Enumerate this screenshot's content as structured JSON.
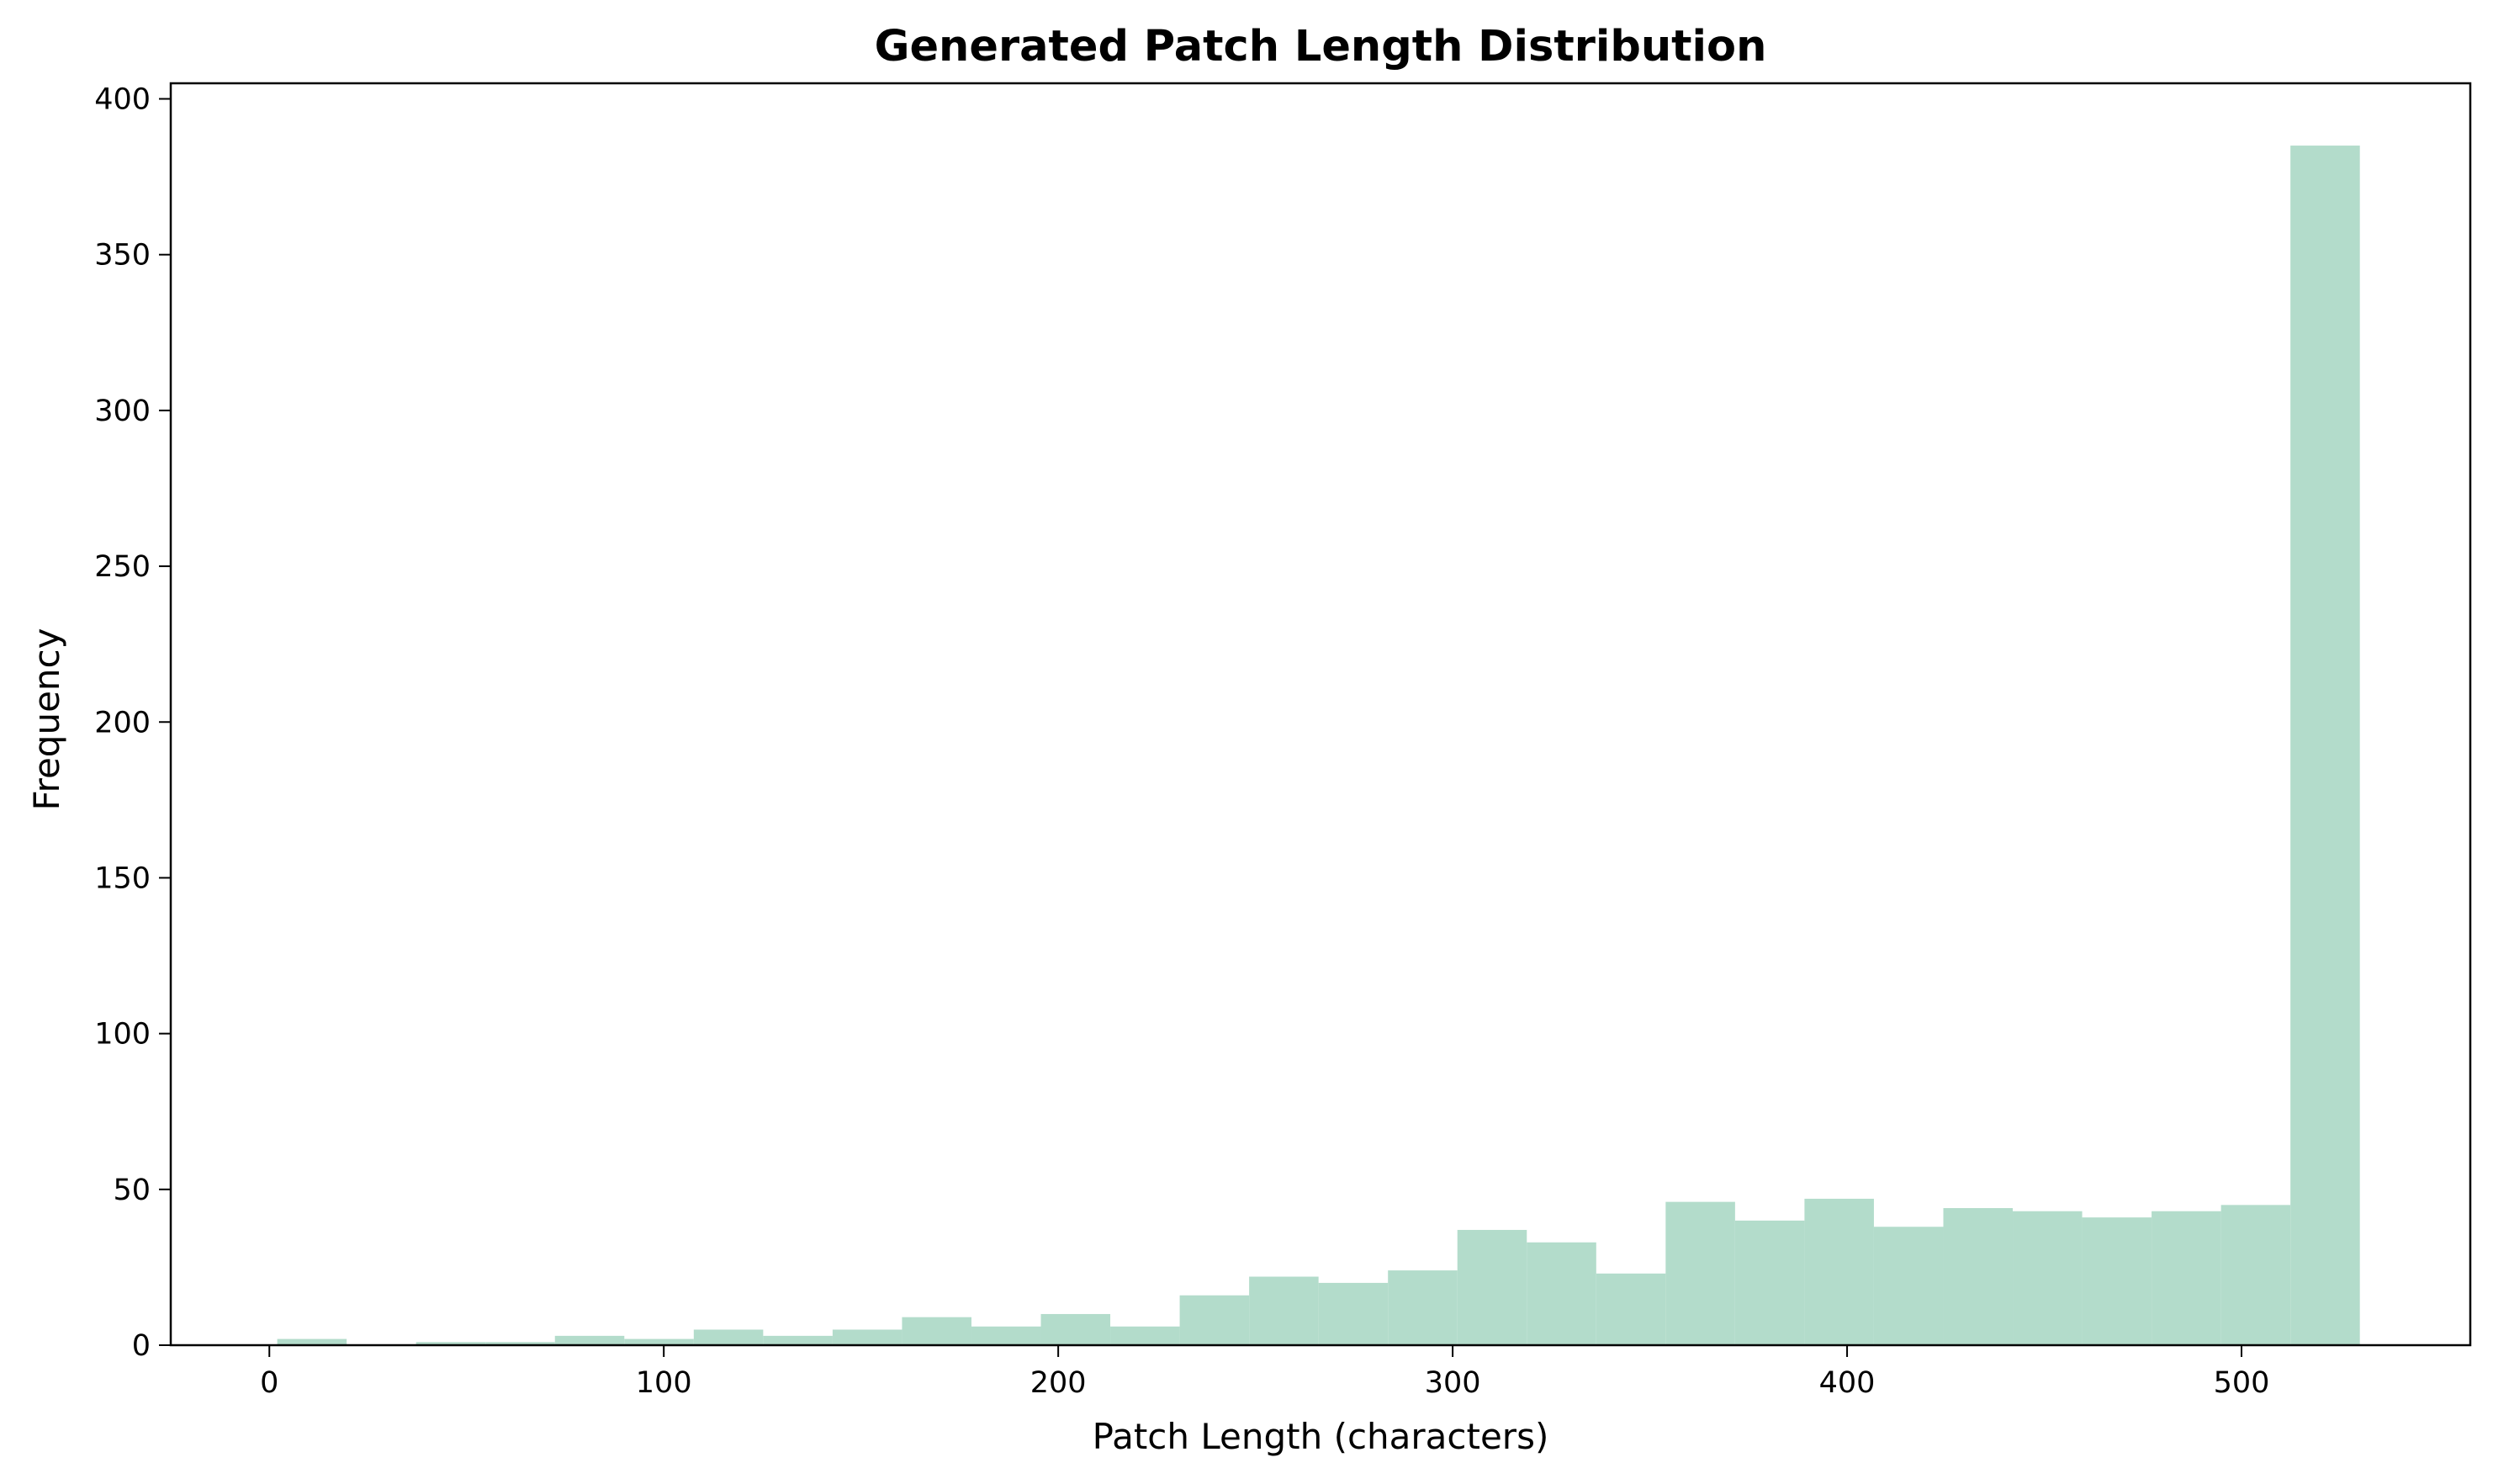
{
  "chart_data": {
    "type": "bar",
    "title": "Generated Patch Length Distribution",
    "xlabel": "Patch Length (characters)",
    "ylabel": "Frequency",
    "xlim": [
      -25,
      558
    ],
    "ylim": [
      0,
      405
    ],
    "xticks": [
      0,
      100,
      200,
      300,
      400,
      500
    ],
    "yticks": [
      0,
      50,
      100,
      150,
      200,
      250,
      300,
      350,
      400
    ],
    "bin_edges": [
      2,
      19.6,
      37.2,
      54.8,
      72.4,
      90,
      107.6,
      125.2,
      142.8,
      160.4,
      178,
      195.6,
      213.2,
      230.8,
      248.4,
      266,
      283.6,
      301.2,
      318.8,
      336.4,
      354,
      371.6,
      389.2,
      406.8,
      424.4,
      442,
      459.6,
      477.2,
      494.8,
      512.4,
      530
    ],
    "values": [
      2,
      0,
      1,
      1,
      3,
      2,
      5,
      3,
      5,
      9,
      6,
      10,
      6,
      16,
      22,
      20,
      24,
      37,
      33,
      23,
      46,
      40,
      47,
      38,
      44,
      43,
      41,
      43,
      45,
      385
    ],
    "bar_color": "#b3dccb",
    "grid": false,
    "legend": "none"
  }
}
